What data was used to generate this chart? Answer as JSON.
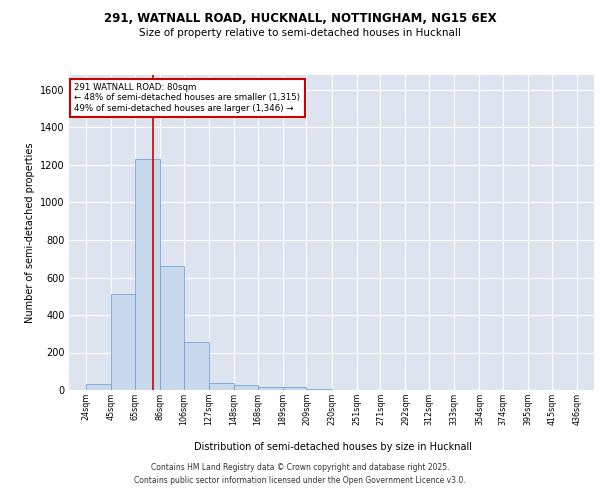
{
  "title_line1": "291, WATNALL ROAD, HUCKNALL, NOTTINGHAM, NG15 6EX",
  "title_line2": "Size of property relative to semi-detached houses in Hucknall",
  "xlabel": "Distribution of semi-detached houses by size in Hucknall",
  "ylabel": "Number of semi-detached properties",
  "bar_left_edges": [
    24,
    45,
    65,
    86,
    106,
    127,
    148,
    168,
    189,
    209,
    230,
    251,
    271,
    292,
    312,
    333,
    354,
    374,
    395,
    415
  ],
  "bar_widths": [
    21,
    20,
    21,
    20,
    21,
    21,
    20,
    21,
    20,
    21,
    21,
    20,
    21,
    20,
    21,
    21,
    20,
    21,
    20,
    21
  ],
  "bar_heights": [
    30,
    510,
    1230,
    660,
    255,
    40,
    25,
    15,
    15,
    5,
    0,
    0,
    0,
    0,
    0,
    0,
    0,
    0,
    0,
    0
  ],
  "tick_labels": [
    "24sqm",
    "45sqm",
    "65sqm",
    "86sqm",
    "106sqm",
    "127sqm",
    "148sqm",
    "168sqm",
    "189sqm",
    "209sqm",
    "230sqm",
    "251sqm",
    "271sqm",
    "292sqm",
    "312sqm",
    "333sqm",
    "354sqm",
    "374sqm",
    "395sqm",
    "415sqm",
    "436sqm"
  ],
  "tick_positions": [
    24,
    45,
    65,
    86,
    106,
    127,
    148,
    168,
    189,
    209,
    230,
    251,
    271,
    292,
    312,
    333,
    354,
    374,
    395,
    415,
    436
  ],
  "bar_color": "#c8d8ed",
  "bar_edge_color": "#6699cc",
  "vline_x": 80,
  "vline_color": "#cc0000",
  "annotation_title": "291 WATNALL ROAD: 80sqm",
  "annotation_line1": "← 48% of semi-detached houses are smaller (1,315)",
  "annotation_line2": "49% of semi-detached houses are larger (1,346) →",
  "annotation_box_color": "#ffffff",
  "annotation_box_edge": "#cc0000",
  "ylim": [
    0,
    1680
  ],
  "xlim": [
    10,
    450
  ],
  "yticks": [
    0,
    200,
    400,
    600,
    800,
    1000,
    1200,
    1400,
    1600
  ],
  "bg_color": "#dde4f0",
  "footer_line1": "Contains HM Land Registry data © Crown copyright and database right 2025.",
  "footer_line2": "Contains public sector information licensed under the Open Government Licence v3.0."
}
